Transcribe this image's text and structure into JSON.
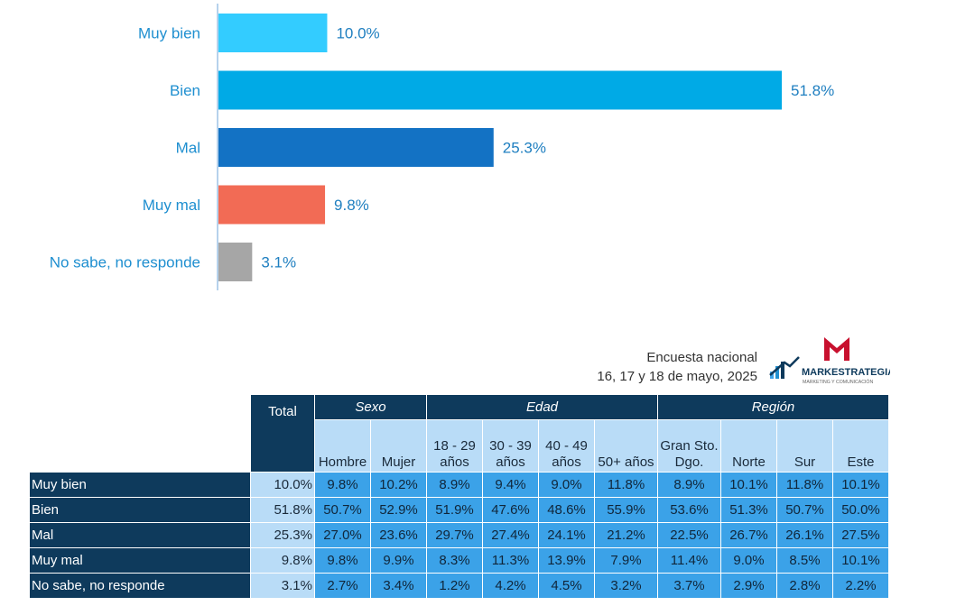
{
  "chart_data": {
    "type": "bar",
    "orientation": "horizontal",
    "categories": [
      "Muy bien",
      "Bien",
      "Mal",
      "Muy mal",
      "No sabe, no responde"
    ],
    "values": [
      10.0,
      51.8,
      25.3,
      9.8,
      3.1
    ],
    "value_labels": [
      "10.0%",
      "51.8%",
      "25.3%",
      "9.8%",
      "3.1%"
    ],
    "colors": [
      "#33ccff",
      "#00aae6",
      "#1372c4",
      "#f26b55",
      "#a6a6a6"
    ],
    "xlim": [
      0,
      60
    ],
    "title": "",
    "xlabel": "",
    "ylabel": ""
  },
  "source": {
    "line1": "Encuesta nacional",
    "line2": "16, 17 y 18 de mayo, 2025"
  },
  "logo": {
    "name": "MARKESTRATEGIA",
    "tagline": "MARKETING Y COMUNICACIÓN",
    "brand_red": "#c8102e"
  },
  "table": {
    "total_header": "Total",
    "groups": [
      "Sexo",
      "Edad",
      "Región"
    ],
    "subheaders": [
      "Hombre",
      "Mujer",
      "18 - 29 años",
      "30 - 39 años",
      "40 - 49 años",
      "50+ años",
      "Gran Sto. Dgo.",
      "Norte",
      "Sur",
      "Este"
    ],
    "rows": [
      {
        "label": "Muy bien",
        "total": "10.0%",
        "cells": [
          "9.8%",
          "10.2%",
          "8.9%",
          "9.4%",
          "9.0%",
          "11.8%",
          "8.9%",
          "10.1%",
          "11.8%",
          "10.1%"
        ]
      },
      {
        "label": "Bien",
        "total": "51.8%",
        "cells": [
          "50.7%",
          "52.9%",
          "51.9%",
          "47.6%",
          "48.6%",
          "55.9%",
          "53.6%",
          "51.3%",
          "50.7%",
          "50.0%"
        ]
      },
      {
        "label": "Mal",
        "total": "25.3%",
        "cells": [
          "27.0%",
          "23.6%",
          "29.7%",
          "27.4%",
          "24.1%",
          "21.2%",
          "22.5%",
          "26.7%",
          "26.1%",
          "27.5%"
        ]
      },
      {
        "label": "Muy mal",
        "total": "9.8%",
        "cells": [
          "9.8%",
          "9.9%",
          "8.3%",
          "11.3%",
          "13.9%",
          "7.9%",
          "11.4%",
          "9.0%",
          "8.5%",
          "10.1%"
        ]
      },
      {
        "label": "No sabe, no responde",
        "total": "3.1%",
        "cells": [
          "2.7%",
          "3.4%",
          "1.2%",
          "4.2%",
          "4.5%",
          "3.2%",
          "3.7%",
          "2.9%",
          "2.8%",
          "2.2%"
        ]
      }
    ]
  }
}
